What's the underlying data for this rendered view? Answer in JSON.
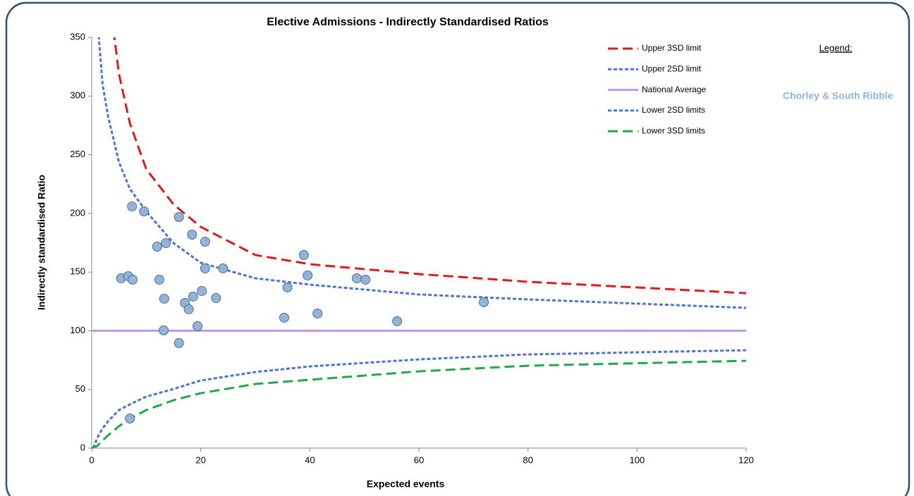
{
  "chart_data": {
    "type": "scatter",
    "title": "Elective Admissions - Indirectly Standardised Ratios",
    "x_label": "Expected events",
    "y_label": "Indirectly standardised Ratio",
    "xlim": [
      0,
      120
    ],
    "xticks": [
      0,
      20,
      40,
      60,
      80,
      100,
      120
    ],
    "ylim": [
      0,
      350
    ],
    "yticks": [
      0,
      50,
      100,
      150,
      200,
      250,
      300,
      350
    ],
    "points": {
      "color": "#95b3d7",
      "x": [
        5.4,
        6.7,
        7.5,
        7.4,
        9.6,
        12.0,
        12.4,
        13.6,
        13.3,
        13.2,
        16.0,
        16.0,
        17.1,
        17.8,
        18.4,
        18.6,
        19.4,
        20.2,
        20.8,
        20.8,
        22.8,
        24.1,
        35.3,
        35.9,
        38.9,
        39.6,
        41.4,
        48.6,
        50.2,
        56.0,
        71.9,
        7.0
      ],
      "values": [
        144.7,
        146.5,
        143.5,
        205.9,
        201.7,
        171.7,
        143.5,
        174.7,
        127.3,
        100.3,
        196.9,
        89.5,
        123.7,
        118.3,
        181.9,
        129.1,
        103.9,
        133.9,
        175.9,
        153.1,
        127.9,
        153.1,
        111.1,
        136.9,
        164.5,
        147.1,
        114.7,
        144.7,
        143.5,
        108.1,
        124.3,
        25.2
      ]
    },
    "series": [
      {
        "name": "Upper 3SD limit",
        "color": "#e31a1c",
        "style": "dashed",
        "x": [
          4,
          5,
          7,
          10,
          15,
          20,
          30,
          40,
          60,
          80,
          120
        ],
        "values": [
          356,
          318.8,
          276.8,
          237.7,
          207.7,
          188.5,
          164.5,
          156.7,
          148.3,
          141.7,
          132
        ]
      },
      {
        "name": "Upper 2SD limit",
        "color": "#4f72d8",
        "style": "dotted",
        "x": [
          1.2,
          2,
          3,
          5,
          7,
          10,
          15,
          20,
          30,
          40,
          60,
          80,
          120
        ],
        "values": [
          356,
          309.8,
          282.8,
          243.7,
          220.9,
          201.7,
          174.7,
          157.9,
          144.7,
          139.3,
          130.9,
          126.7,
          119.5
        ]
      },
      {
        "name": "National Average",
        "color": "#c09ae0",
        "style": "solid",
        "x": [
          0,
          120
        ],
        "values": [
          100,
          100
        ]
      },
      {
        "name": "Lower 2SD limits",
        "color": "#4f72d8",
        "style": "dotted",
        "x": [
          0.3,
          1,
          2,
          3,
          5,
          7,
          10,
          15,
          20,
          30,
          40,
          60,
          80,
          120
        ],
        "values": [
          0,
          8.4,
          16.8,
          22.8,
          32.4,
          37.2,
          43.8,
          50.4,
          57.6,
          64.8,
          69.6,
          75.6,
          79.8,
          83.4
        ]
      },
      {
        "name": "Lower 3SD limits",
        "color": "#1faa4a",
        "style": "dashed",
        "x": [
          0,
          1,
          2,
          3,
          5,
          7,
          10,
          15,
          20,
          30,
          40,
          60,
          80,
          120
        ],
        "values": [
          0,
          1.8,
          6.6,
          10.8,
          18.6,
          25.2,
          32.4,
          40.8,
          46.8,
          54.6,
          58.2,
          65.4,
          70.2,
          74.4
        ]
      }
    ],
    "sidebar": {
      "heading": "Legend:",
      "label": "Chorley & South Ribble"
    }
  }
}
